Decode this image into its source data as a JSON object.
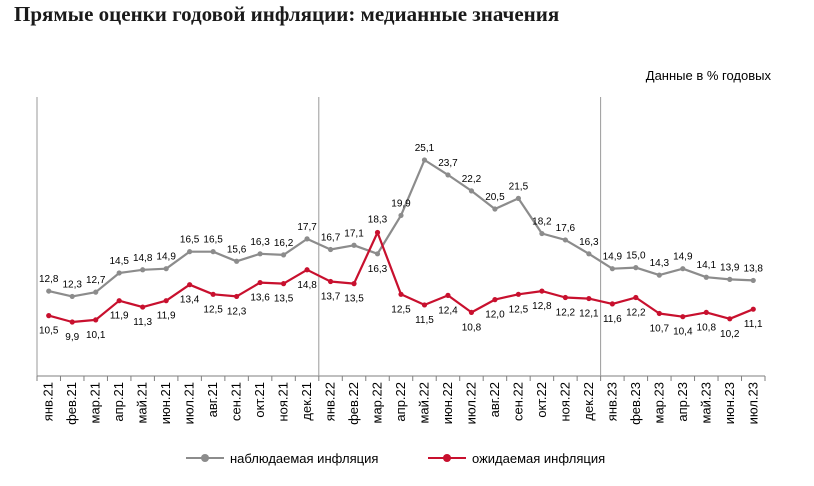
{
  "title": "Прямые оценки годовой инфляции: медианные значения",
  "units_note": "Данные в  % годовых",
  "chart_data": {
    "type": "line",
    "categories": [
      "янв.21",
      "фев.21",
      "мар.21",
      "апр.21",
      "май.21",
      "июн.21",
      "июл.21",
      "авг.21",
      "сен.21",
      "окт.21",
      "ноя.21",
      "дек.21",
      "янв.22",
      "фев.22",
      "мар.22",
      "апр.22",
      "май.22",
      "июн.22",
      "июл.22",
      "авг.22",
      "сен.22",
      "окт.22",
      "ноя.22",
      "дек.22",
      "янв.23",
      "фев.23",
      "мар.23",
      "апр.23",
      "май.23",
      "июн.23",
      "июл.23"
    ],
    "series": [
      {
        "name": "наблюдаемая инфляция",
        "color": "#8c8c8c",
        "values": [
          12.8,
          12.3,
          12.7,
          14.5,
          14.8,
          14.9,
          16.5,
          16.5,
          15.6,
          16.3,
          16.2,
          17.7,
          16.7,
          17.1,
          16.3,
          19.9,
          25.1,
          23.7,
          22.2,
          20.5,
          21.5,
          18.2,
          17.6,
          16.3,
          14.9,
          15.0,
          14.3,
          14.9,
          14.1,
          13.9,
          13.8
        ],
        "labels": [
          "12,8",
          "12,3",
          "12,7",
          "14,5",
          "14,8",
          "14,9",
          "16,5",
          "16,5",
          "15,6",
          "16,3",
          "16,2",
          "17,7",
          "16,7",
          "17,1",
          "16,3",
          "19,9",
          "25,1",
          "23,7",
          "22,2",
          "20,5",
          "21,5",
          "18,2",
          "17,6",
          "16,3",
          "14,9",
          "15,0",
          "14,3",
          "14,9",
          "14,1",
          "13,9",
          "13,8"
        ]
      },
      {
        "name": "ожидаемая инфляция",
        "color": "#c8102e",
        "values": [
          10.5,
          9.9,
          10.1,
          11.9,
          11.3,
          11.9,
          13.4,
          12.5,
          12.3,
          13.6,
          13.5,
          14.8,
          13.7,
          13.5,
          18.3,
          12.5,
          11.5,
          12.4,
          10.8,
          12.0,
          12.5,
          12.8,
          12.2,
          12.1,
          11.6,
          12.2,
          10.7,
          10.4,
          10.8,
          10.2,
          11.1
        ],
        "labels": [
          "10,5",
          "9,9",
          "10,1",
          "11,9",
          "11,3",
          "11,9",
          "13,4",
          "12,5",
          "12,3",
          "13,6",
          "13,5",
          "14,8",
          "13,7",
          "13,5",
          "18,3",
          "12,5",
          "11,5",
          "12,4",
          "10,8",
          "12,0",
          "12,5",
          "12,8",
          "12,2",
          "12,1",
          "11,6",
          "12,2",
          "10,7",
          "10,4",
          "10,8",
          "10,2",
          "11,1"
        ]
      }
    ],
    "separators_after": [
      "дек.21",
      "дек.22"
    ],
    "legend_position": "bottom",
    "grid": false
  }
}
